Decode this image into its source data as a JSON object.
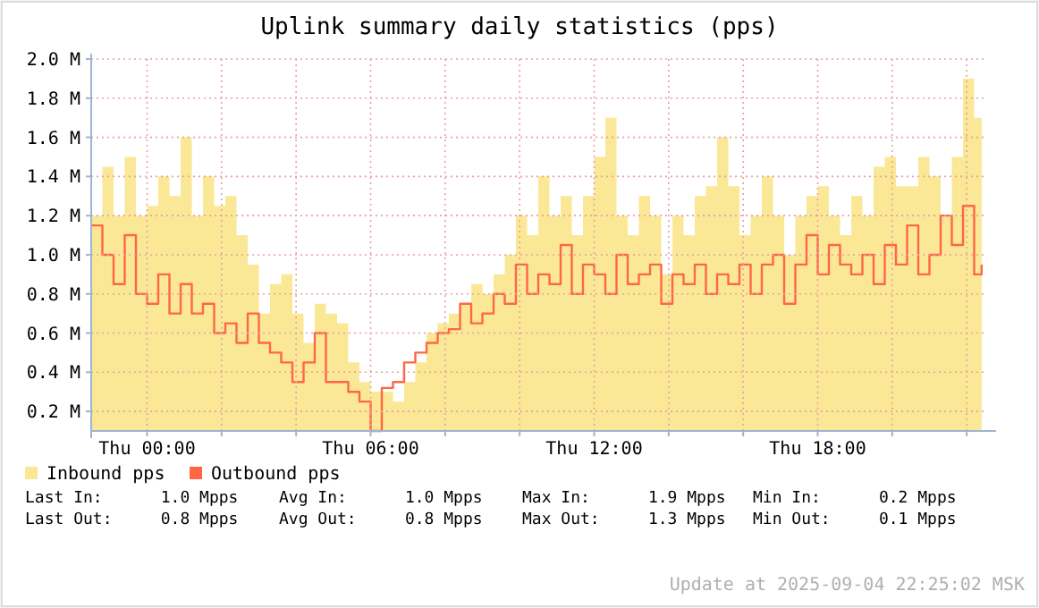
{
  "chart_data": {
    "type": "area",
    "title": "Uplink summary daily statistics (pps)",
    "x": [
      "2025-09-03T22:30",
      "2025-09-03T22:48",
      "2025-09-03T23:06",
      "2025-09-03T23:24",
      "2025-09-03T23:42",
      "2025-09-04T00:00",
      "2025-09-04T00:18",
      "2025-09-04T00:36",
      "2025-09-04T00:54",
      "2025-09-04T01:12",
      "2025-09-04T01:30",
      "2025-09-04T01:48",
      "2025-09-04T02:06",
      "2025-09-04T02:24",
      "2025-09-04T02:42",
      "2025-09-04T03:00",
      "2025-09-04T03:18",
      "2025-09-04T03:36",
      "2025-09-04T03:54",
      "2025-09-04T04:12",
      "2025-09-04T04:30",
      "2025-09-04T04:48",
      "2025-09-04T05:06",
      "2025-09-04T05:24",
      "2025-09-04T05:42",
      "2025-09-04T06:00",
      "2025-09-04T06:18",
      "2025-09-04T06:36",
      "2025-09-04T06:54",
      "2025-09-04T07:12",
      "2025-09-04T07:30",
      "2025-09-04T07:48",
      "2025-09-04T08:06",
      "2025-09-04T08:24",
      "2025-09-04T08:42",
      "2025-09-04T09:00",
      "2025-09-04T09:18",
      "2025-09-04T09:36",
      "2025-09-04T09:54",
      "2025-09-04T10:12",
      "2025-09-04T10:30",
      "2025-09-04T10:48",
      "2025-09-04T11:06",
      "2025-09-04T11:24",
      "2025-09-04T11:42",
      "2025-09-04T12:00",
      "2025-09-04T12:18",
      "2025-09-04T12:36",
      "2025-09-04T12:54",
      "2025-09-04T13:12",
      "2025-09-04T13:30",
      "2025-09-04T13:48",
      "2025-09-04T14:06",
      "2025-09-04T14:24",
      "2025-09-04T14:42",
      "2025-09-04T15:00",
      "2025-09-04T15:18",
      "2025-09-04T15:36",
      "2025-09-04T15:54",
      "2025-09-04T16:12",
      "2025-09-04T16:30",
      "2025-09-04T16:48",
      "2025-09-04T17:06",
      "2025-09-04T17:24",
      "2025-09-04T17:42",
      "2025-09-04T18:00",
      "2025-09-04T18:18",
      "2025-09-04T18:36",
      "2025-09-04T18:54",
      "2025-09-04T19:12",
      "2025-09-04T19:30",
      "2025-09-04T19:48",
      "2025-09-04T20:06",
      "2025-09-04T20:24",
      "2025-09-04T20:42",
      "2025-09-04T21:00",
      "2025-09-04T21:18",
      "2025-09-04T21:36",
      "2025-09-04T21:54",
      "2025-09-04T22:12",
      "2025-09-04T22:24"
    ],
    "series": [
      {
        "name": "Inbound pps",
        "type": "area",
        "color": "#fbe896",
        "values": [
          1.2,
          1.45,
          1.2,
          1.5,
          1.2,
          1.25,
          1.4,
          1.3,
          1.6,
          1.2,
          1.4,
          1.25,
          1.3,
          1.1,
          0.95,
          0.7,
          0.85,
          0.9,
          0.7,
          0.55,
          0.75,
          0.7,
          0.65,
          0.45,
          0.35,
          0.3,
          0.3,
          0.25,
          0.35,
          0.45,
          0.6,
          0.65,
          0.7,
          0.75,
          0.85,
          0.8,
          0.9,
          1.0,
          1.2,
          1.1,
          1.4,
          1.2,
          1.3,
          1.1,
          1.3,
          1.5,
          1.7,
          1.2,
          1.1,
          1.3,
          1.2,
          0.9,
          1.2,
          1.1,
          1.3,
          1.35,
          1.6,
          1.35,
          1.1,
          1.2,
          1.4,
          1.2,
          1.0,
          1.2,
          1.3,
          1.35,
          1.2,
          1.1,
          1.3,
          1.2,
          1.45,
          1.5,
          1.35,
          1.35,
          1.5,
          1.4,
          1.2,
          1.5,
          1.9,
          1.7,
          1.7
        ]
      },
      {
        "name": "Outbound pps",
        "type": "step",
        "color": "#ff6644",
        "values": [
          1.15,
          1.0,
          0.85,
          1.1,
          0.8,
          0.75,
          0.9,
          0.7,
          0.85,
          0.7,
          0.75,
          0.6,
          0.65,
          0.55,
          0.7,
          0.55,
          0.5,
          0.45,
          0.35,
          0.45,
          0.6,
          0.35,
          0.35,
          0.3,
          0.25,
          0.1,
          0.32,
          0.35,
          0.45,
          0.5,
          0.55,
          0.6,
          0.62,
          0.75,
          0.65,
          0.7,
          0.8,
          0.75,
          0.95,
          0.8,
          0.9,
          0.85,
          1.05,
          0.8,
          0.95,
          0.9,
          0.8,
          1.0,
          0.85,
          0.9,
          0.95,
          0.75,
          0.9,
          0.85,
          0.95,
          0.8,
          0.9,
          0.85,
          0.95,
          0.8,
          0.95,
          1.0,
          0.75,
          0.95,
          1.1,
          0.9,
          1.05,
          0.95,
          0.9,
          1.0,
          0.85,
          1.05,
          0.95,
          1.15,
          0.9,
          1.0,
          1.2,
          1.05,
          1.25,
          0.9,
          0.95
        ]
      }
    ],
    "xlim": [
      "2025-09-03T22:30",
      "2025-09-04T22:30"
    ],
    "xticks": [
      {
        "value": "2025-09-04T00:00",
        "label": "Thu 00:00"
      },
      {
        "value": "2025-09-04T02:00",
        "label": null
      },
      {
        "value": "2025-09-04T04:00",
        "label": null
      },
      {
        "value": "2025-09-04T06:00",
        "label": "Thu 06:00"
      },
      {
        "value": "2025-09-04T08:00",
        "label": null
      },
      {
        "value": "2025-09-04T10:00",
        "label": null
      },
      {
        "value": "2025-09-04T12:00",
        "label": "Thu 12:00"
      },
      {
        "value": "2025-09-04T14:00",
        "label": null
      },
      {
        "value": "2025-09-04T16:00",
        "label": null
      },
      {
        "value": "2025-09-04T18:00",
        "label": "Thu 18:00"
      },
      {
        "value": "2025-09-04T20:00",
        "label": null
      },
      {
        "value": "2025-09-04T22:00",
        "label": null
      }
    ],
    "ylim": [
      0.1,
      2.0
    ],
    "yticks": [
      {
        "value": 0.2,
        "label": "0.2 M"
      },
      {
        "value": 0.4,
        "label": "0.4 M"
      },
      {
        "value": 0.6,
        "label": "0.6 M"
      },
      {
        "value": 0.8,
        "label": "0.8 M"
      },
      {
        "value": 1.0,
        "label": "1.0 M"
      },
      {
        "value": 1.2,
        "label": "1.2 M"
      },
      {
        "value": 1.4,
        "label": "1.4 M"
      },
      {
        "value": 1.6,
        "label": "1.6 M"
      },
      {
        "value": 1.8,
        "label": "1.8 M"
      },
      {
        "value": 2.0,
        "label": "2.0 M"
      }
    ],
    "grid": true,
    "legend": "bottom",
    "annotations": [
      "Last In:      1.0 Mpps",
      "Avg In:      1.0 Mpps",
      "Max In:      1.9 Mpps",
      "Min In:      0.2 Mpps",
      "Last Out:     0.8 Mpps",
      "Avg Out:     0.8 Mpps",
      "Max Out:     1.3 Mpps",
      "Min Out:     0.1 Mpps",
      "Update at 2025-09-04 22:25:02 MSK"
    ]
  }
}
